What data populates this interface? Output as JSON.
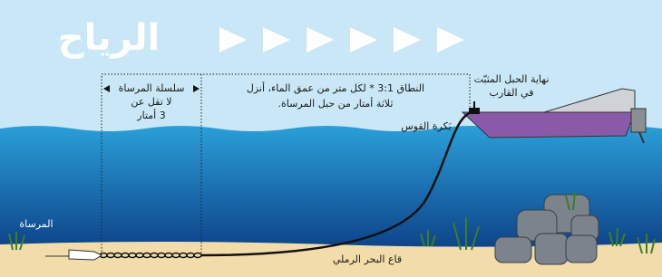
{
  "title": "الرياح",
  "chain_label": [
    "سلسلة المرساة",
    "لا تقل عن",
    "3 أمتار"
  ],
  "scope_note": [
    "النطاق 3:1 * لكل متر من عمق الماء، أنزل",
    "ثلاثة أمتار من حبل المرساة."
  ],
  "bow_roller": "بَكرة القوس",
  "rope_end": [
    "نهاية الحبل المثبّت",
    "في القارب"
  ],
  "anchor": "المرساة",
  "seabed": "قاع البحر الرملي"
}
